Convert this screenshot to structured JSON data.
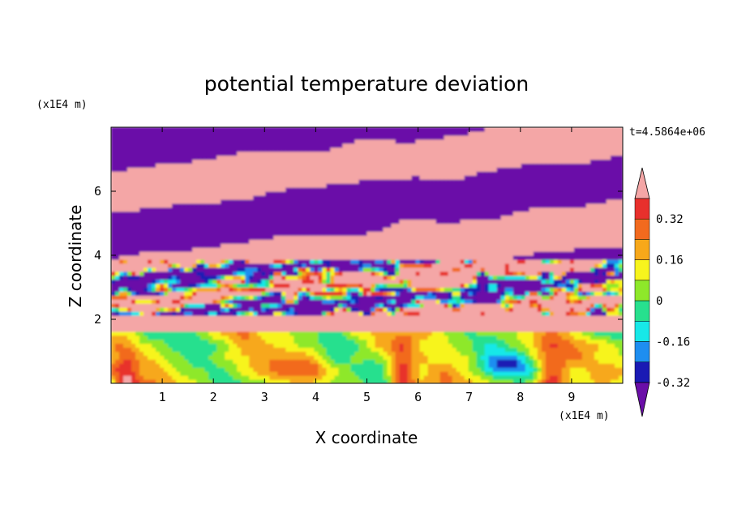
{
  "chart_data": {
    "type": "heatmap",
    "title": "potential temperature deviation",
    "xlabel": "X coordinate",
    "ylabel": "Z coordinate",
    "x_unit": "(x1E4 m)",
    "y_unit": "(x1E4 m)",
    "time_label": "t=4.5864e+06",
    "xlim": [
      0,
      10
    ],
    "ylim": [
      0,
      8
    ],
    "x_ticks": [
      "1",
      "2",
      "3",
      "4",
      "5",
      "6",
      "7",
      "8",
      "9"
    ],
    "y_ticks": [
      "2",
      "4",
      "6"
    ],
    "colorbar": {
      "levels": [
        -0.4,
        -0.32,
        -0.24,
        -0.16,
        -0.08,
        0,
        0.08,
        0.16,
        0.24,
        0.32,
        0.4
      ],
      "labels": [
        "0.32",
        "0.16",
        "0",
        "-0.16",
        "-0.32"
      ],
      "label_values": [
        0.32,
        0.16,
        0,
        -0.16,
        -0.32
      ],
      "colors_top_to_bottom": [
        "#f4a6a6",
        "#e8302c",
        "#f26a1e",
        "#f7a81a",
        "#f7f41d",
        "#8ee82a",
        "#27e08e",
        "#17e8e8",
        "#1e8ef0",
        "#1a1ab4",
        "#6a0ea8"
      ]
    },
    "field_description_bands": [
      {
        "zmin": 0.0,
        "zmax": 1.6,
        "regime": "near-neutral (green/cyan)"
      },
      {
        "zmin": 1.6,
        "zmax": 3.8,
        "regime": "mixed small-scale"
      },
      {
        "zmin": 3.8,
        "zmax": 8.0,
        "regime": "alternating layers (pink/purple)"
      }
    ]
  }
}
